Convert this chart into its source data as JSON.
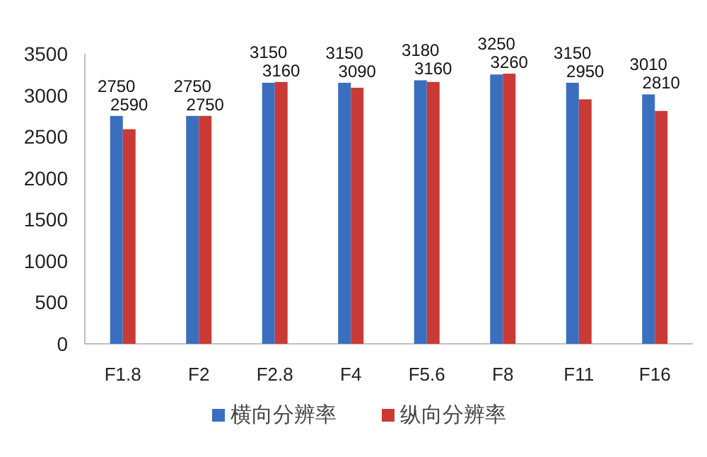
{
  "chart_data": {
    "type": "bar",
    "categories": [
      "F1.8",
      "F2",
      "F2.8",
      "F4",
      "F5.6",
      "F8",
      "F11",
      "F16"
    ],
    "series": [
      {
        "name": "横向分辨率",
        "color": "#3a6fc0",
        "values": [
          2750,
          2750,
          3150,
          3150,
          3180,
          3250,
          3150,
          3010
        ]
      },
      {
        "name": "纵向分辨率",
        "color": "#c93a37",
        "values": [
          2590,
          2750,
          3160,
          3090,
          3160,
          3260,
          2950,
          2810
        ]
      }
    ],
    "ylim": [
      0,
      3500
    ],
    "yticks": [
      0,
      500,
      1000,
      1500,
      2000,
      2500,
      3000,
      3500
    ],
    "data_labels": true,
    "grid": false,
    "legend": "bottom"
  }
}
